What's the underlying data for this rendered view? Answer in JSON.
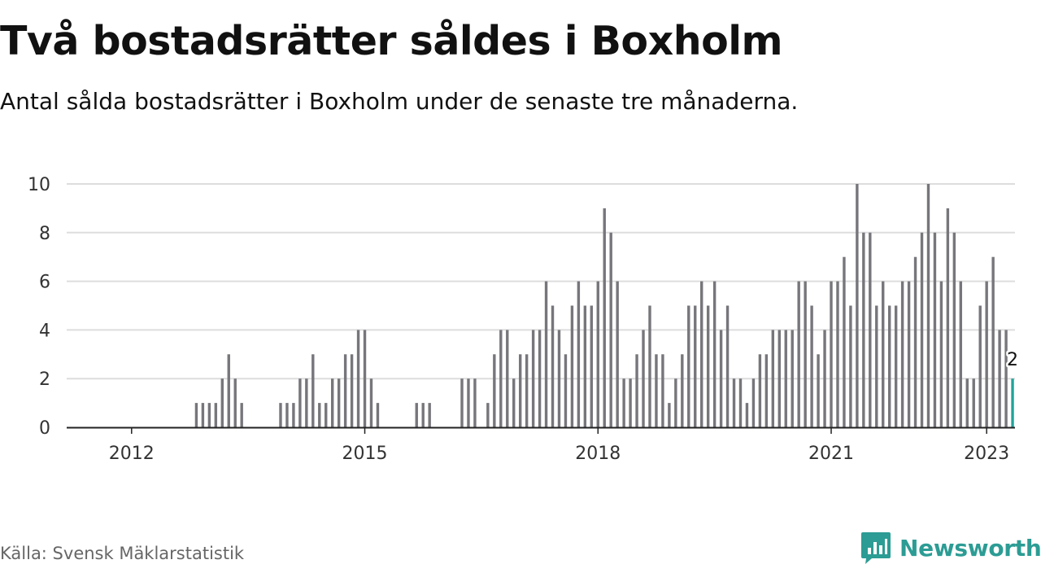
{
  "title": "Två bostadsrätter såldes i Boxholm",
  "subtitle": "Antal sålda bostadsrätter i Boxholm under de senaste tre månaderna.",
  "source": "Källa: Svensk Mäklarstatistik",
  "brand": {
    "name": "Newsworthy",
    "icon": "newsworthy-logo-icon"
  },
  "colors": {
    "bar": "#76767b",
    "highlight": "#22a39b",
    "grid": "#dddddd",
    "axis": "#222222",
    "text": "#333333",
    "brand": "#2c9c94"
  },
  "chart_data": {
    "type": "bar",
    "x_unit": "month",
    "x_start": "2011-07",
    "values": [
      0,
      0,
      0,
      0,
      0,
      0,
      0,
      0,
      0,
      0,
      0,
      0,
      0,
      0,
      0,
      0,
      1,
      1,
      1,
      1,
      2,
      3,
      2,
      1,
      0,
      0,
      0,
      0,
      0,
      1,
      1,
      1,
      2,
      2,
      3,
      1,
      1,
      2,
      2,
      3,
      3,
      4,
      4,
      2,
      1,
      0,
      0,
      0,
      0,
      0,
      1,
      1,
      1,
      0,
      0,
      0,
      0,
      2,
      2,
      2,
      0,
      1,
      3,
      4,
      4,
      2,
      3,
      3,
      4,
      4,
      6,
      5,
      4,
      3,
      5,
      6,
      5,
      5,
      6,
      9,
      8,
      6,
      2,
      2,
      3,
      4,
      5,
      3,
      3,
      1,
      2,
      3,
      5,
      5,
      6,
      5,
      6,
      4,
      5,
      2,
      2,
      1,
      2,
      3,
      3,
      4,
      4,
      4,
      4,
      6,
      6,
      5,
      3,
      4,
      6,
      6,
      7,
      5,
      10,
      8,
      8,
      5,
      6,
      5,
      5,
      6,
      6,
      7,
      8,
      10,
      8,
      6,
      9,
      8,
      6,
      2,
      2,
      5,
      6,
      7,
      4,
      4,
      2
    ],
    "highlight_last": true,
    "last_label": "2",
    "xticks": [
      "2012",
      "2015",
      "2018",
      "2021",
      "2023"
    ],
    "xtick_dates": [
      "2012-01",
      "2015-01",
      "2018-01",
      "2021-01",
      "2023-01"
    ],
    "yticks": [
      "0",
      "2",
      "4",
      "6",
      "8",
      "10"
    ],
    "ylim": [
      0,
      10
    ],
    "grid": true,
    "title": "Två bostadsrätter såldes i Boxholm",
    "xlabel": "",
    "ylabel": ""
  }
}
